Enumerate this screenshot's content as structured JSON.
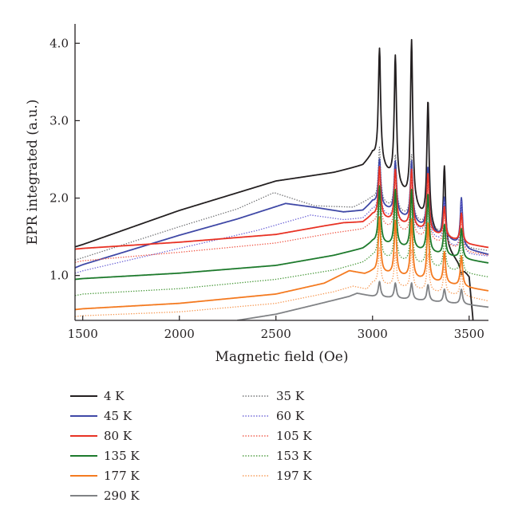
{
  "chart_data": {
    "type": "line",
    "xlabel": "Magnetic field (Oe)",
    "ylabel": "EPR integrated (a.u.)",
    "xlim": [
      1460,
      3600
    ],
    "ylim": [
      0.42,
      4.25
    ],
    "x_ticks": [
      1500,
      2000,
      2500,
      3000,
      3500
    ],
    "y_ticks": [
      1.0,
      2.0,
      3.0,
      4.0
    ],
    "y_tick_labels": [
      "1.0",
      "2.0",
      "3.0",
      "4.0"
    ],
    "grid": false,
    "legend_placement": "below",
    "peak_fields": [
      3036,
      3118,
      3202,
      3287,
      3372,
      3460
    ],
    "series": [
      {
        "name": "4 K",
        "color": "#231f20",
        "style": "solid",
        "points": [
          [
            1460,
            1.37
          ],
          [
            1500,
            1.4
          ],
          [
            2000,
            1.84
          ],
          [
            2500,
            2.22
          ],
          [
            2800,
            2.33
          ],
          [
            2950,
            2.42
          ],
          [
            3000,
            2.55
          ],
          [
            3500,
            0.98
          ],
          [
            3520,
            0.42
          ]
        ],
        "peaks": [
          3.92,
          3.82,
          4.02,
          3.24,
          2.4,
          1.0
        ]
      },
      {
        "name": "35 K",
        "color": "#6d6e71",
        "style": "dotted",
        "points": [
          [
            1460,
            1.2
          ],
          [
            1500,
            1.23
          ],
          [
            2000,
            1.63
          ],
          [
            2300,
            1.86
          ],
          [
            2490,
            2.07
          ],
          [
            2700,
            1.9
          ],
          [
            2900,
            1.88
          ],
          [
            3000,
            2.0
          ],
          [
            3500,
            1.35
          ],
          [
            3600,
            1.32
          ]
        ],
        "peaks": [
          2.65,
          2.55,
          2.55,
          2.4,
          1.95,
          1.95
        ]
      },
      {
        "name": "45 K",
        "color": "#3f48a6",
        "style": "solid",
        "points": [
          [
            1460,
            1.1
          ],
          [
            1500,
            1.14
          ],
          [
            2000,
            1.52
          ],
          [
            2300,
            1.73
          ],
          [
            2550,
            1.93
          ],
          [
            2700,
            1.88
          ],
          [
            2850,
            1.82
          ],
          [
            2950,
            1.84
          ],
          [
            3000,
            1.95
          ],
          [
            3500,
            1.33
          ],
          [
            3600,
            1.27
          ]
        ],
        "peaks": [
          2.5,
          2.47,
          2.47,
          2.4,
          2.0,
          2.0
        ]
      },
      {
        "name": "60 K",
        "color": "#6b62d6",
        "style": "dotted",
        "points": [
          [
            1460,
            1.03
          ],
          [
            1500,
            1.06
          ],
          [
            2000,
            1.35
          ],
          [
            2400,
            1.58
          ],
          [
            2680,
            1.78
          ],
          [
            2850,
            1.72
          ],
          [
            2950,
            1.74
          ],
          [
            3000,
            1.85
          ],
          [
            3500,
            1.27
          ],
          [
            3600,
            1.25
          ]
        ],
        "peaks": [
          2.42,
          2.37,
          2.37,
          2.32,
          1.95,
          1.95
        ]
      },
      {
        "name": "80 K",
        "color": "#e83224",
        "style": "solid",
        "points": [
          [
            1460,
            1.34
          ],
          [
            1500,
            1.35
          ],
          [
            2000,
            1.43
          ],
          [
            2500,
            1.53
          ],
          [
            2750,
            1.64
          ],
          [
            2850,
            1.68
          ],
          [
            2950,
            1.69
          ],
          [
            3000,
            1.78
          ],
          [
            3500,
            1.4
          ],
          [
            3600,
            1.36
          ]
        ],
        "peaks": [
          2.4,
          2.36,
          2.36,
          2.32,
          1.88,
          1.8
        ]
      },
      {
        "name": "105 K",
        "color": "#f05a4a",
        "style": "dotted",
        "points": [
          [
            1460,
            1.17
          ],
          [
            1500,
            1.19
          ],
          [
            2000,
            1.3
          ],
          [
            2500,
            1.42
          ],
          [
            2800,
            1.55
          ],
          [
            2950,
            1.6
          ],
          [
            3000,
            1.68
          ],
          [
            3500,
            1.3
          ],
          [
            3600,
            1.26
          ]
        ],
        "peaks": [
          2.28,
          2.25,
          2.25,
          2.2,
          1.78,
          1.7
        ]
      },
      {
        "name": "135 K",
        "color": "#1d7a2c",
        "style": "solid",
        "points": [
          [
            1460,
            0.95
          ],
          [
            1500,
            0.96
          ],
          [
            2000,
            1.03
          ],
          [
            2500,
            1.13
          ],
          [
            2800,
            1.26
          ],
          [
            2950,
            1.35
          ],
          [
            3000,
            1.43
          ],
          [
            3500,
            1.2
          ],
          [
            3600,
            1.16
          ]
        ],
        "peaks": [
          2.15,
          2.1,
          2.1,
          2.05,
          1.65,
          1.6
        ]
      },
      {
        "name": "153 K",
        "color": "#4a9a3c",
        "style": "dotted",
        "points": [
          [
            1460,
            0.74
          ],
          [
            1500,
            0.76
          ],
          [
            2000,
            0.83
          ],
          [
            2500,
            0.95
          ],
          [
            2800,
            1.07
          ],
          [
            2950,
            1.17
          ],
          [
            3000,
            1.25
          ],
          [
            3500,
            1.02
          ],
          [
            3600,
            0.98
          ]
        ],
        "peaks": [
          1.95,
          1.9,
          1.92,
          1.88,
          1.5,
          1.45
        ]
      },
      {
        "name": "177 K",
        "color": "#f47a20",
        "style": "solid",
        "points": [
          [
            1460,
            0.56
          ],
          [
            1500,
            0.57
          ],
          [
            2000,
            0.64
          ],
          [
            2500,
            0.76
          ],
          [
            2750,
            0.9
          ],
          [
            2880,
            1.06
          ],
          [
            2960,
            1.02
          ],
          [
            3000,
            1.05
          ],
          [
            3500,
            0.84
          ],
          [
            3600,
            0.8
          ]
        ],
        "peaks": [
          1.75,
          1.7,
          1.72,
          1.68,
          1.3,
          1.25
        ]
      },
      {
        "name": "197 K",
        "color": "#f79a55",
        "style": "dotted",
        "points": [
          [
            1460,
            0.47
          ],
          [
            1500,
            0.48
          ],
          [
            2000,
            0.53
          ],
          [
            2500,
            0.64
          ],
          [
            2800,
            0.79
          ],
          [
            2900,
            0.86
          ],
          [
            2970,
            0.82
          ],
          [
            3000,
            0.9
          ],
          [
            3500,
            0.72
          ],
          [
            3600,
            0.67
          ]
        ],
        "peaks": [
          1.35,
          1.3,
          1.32,
          1.28,
          1.1,
          1.05
        ]
      },
      {
        "name": "290 K",
        "color": "#808285",
        "style": "solid",
        "points": [
          [
            2300,
            0.42
          ],
          [
            2500,
            0.5
          ],
          [
            2700,
            0.62
          ],
          [
            2880,
            0.73
          ],
          [
            2920,
            0.77
          ],
          [
            3000,
            0.73
          ],
          [
            3500,
            0.62
          ],
          [
            3600,
            0.59
          ]
        ],
        "peaks": [
          0.92,
          0.9,
          0.9,
          0.88,
          0.82,
          0.82
        ]
      }
    ],
    "legend_columns": [
      [
        "4 K",
        "45 K",
        "80 K",
        "135 K",
        "177 K",
        "290 K"
      ],
      [
        "35 K",
        "60 K",
        "105 K",
        "153 K",
        "197 K"
      ]
    ]
  }
}
